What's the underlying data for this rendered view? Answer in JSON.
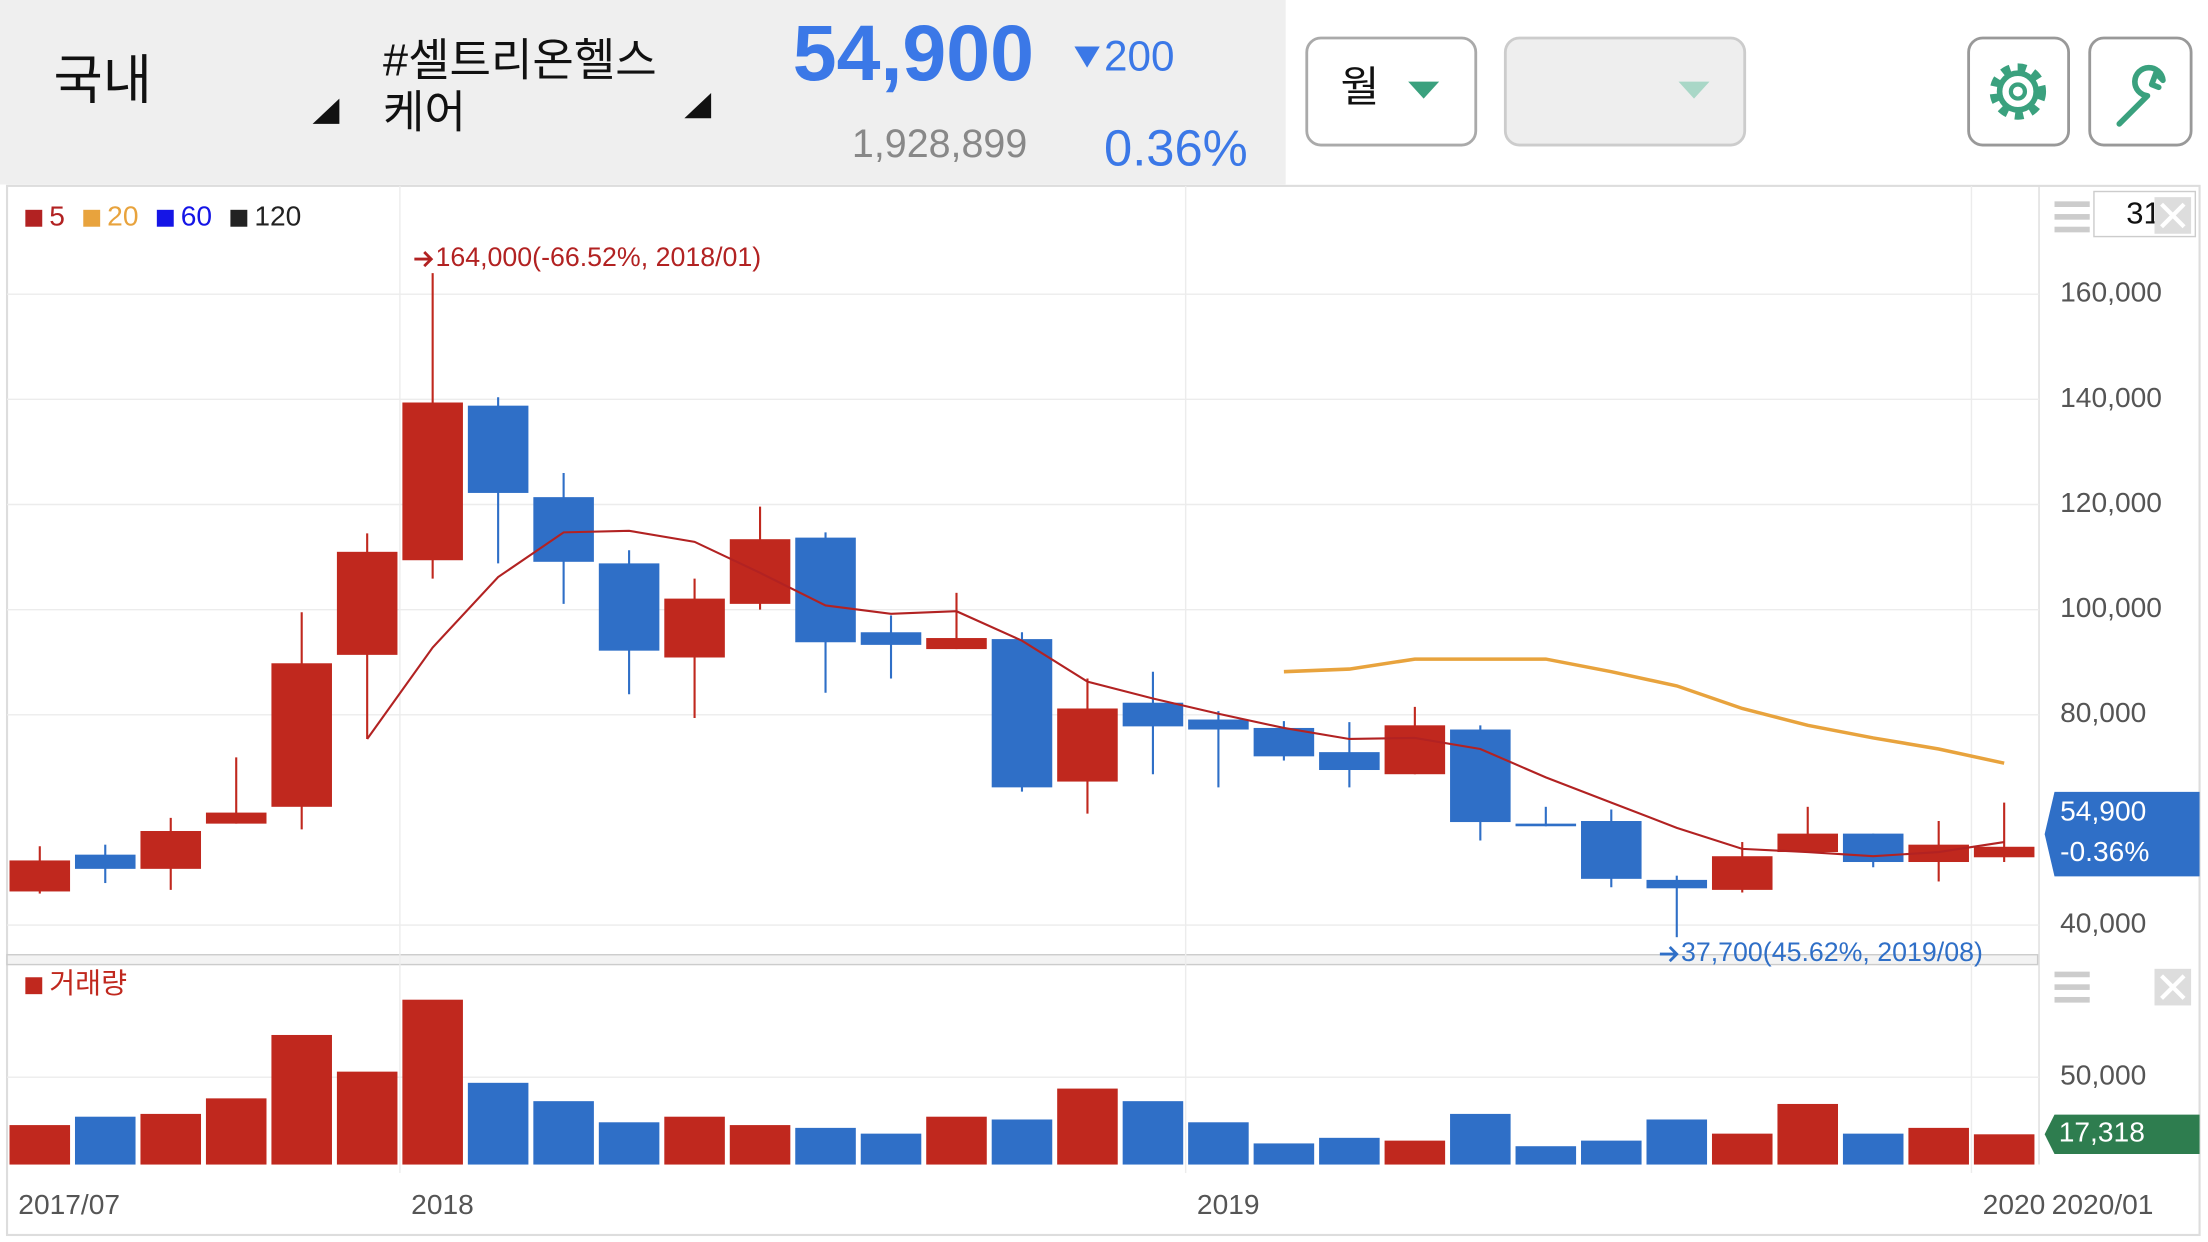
{
  "header": {
    "market": "국내",
    "stock_name": [
      "#셀트리온헬스",
      "케어"
    ],
    "price": "54,900",
    "change": "200",
    "volume": "1,928,899",
    "change_rate": "0.36%",
    "period": "월"
  },
  "chart_data": {
    "type": "candlestick",
    "categories": [
      "2017/07",
      null,
      null,
      null,
      null,
      null,
      "2018",
      null,
      null,
      null,
      null,
      null,
      null,
      null,
      null,
      null,
      null,
      null,
      "2019",
      null,
      null,
      null,
      null,
      null,
      null,
      null,
      null,
      null,
      null,
      null,
      "2020"
    ],
    "open": [
      46400,
      53400,
      50700,
      59300,
      62500,
      91400,
      109400,
      138800,
      121400,
      108800,
      90900,
      101100,
      113700,
      95700,
      92500,
      94400,
      67300,
      82300,
      79100,
      77500,
      72900,
      68700,
      77200,
      59300,
      59800,
      48600,
      46700,
      53900,
      57400,
      52000,
      52900
    ],
    "high": [
      55000,
      55300,
      60400,
      71900,
      99500,
      114500,
      164000,
      140400,
      126000,
      111300,
      105900,
      119600,
      114700,
      98900,
      103200,
      95700,
      86900,
      88200,
      80700,
      78800,
      78600,
      81500,
      78000,
      62500,
      62000,
      49400,
      55800,
      62500,
      57400,
      59800,
      63300
    ],
    "low": [
      46000,
      48000,
      46700,
      59300,
      58200,
      75400,
      105900,
      108800,
      101100,
      83900,
      79400,
      100000,
      84200,
      86900,
      92500,
      65400,
      61200,
      68700,
      66200,
      71300,
      66200,
      68700,
      56100,
      58800,
      47200,
      37700,
      46200,
      53900,
      51000,
      48300,
      52000
    ],
    "close": [
      52300,
      50700,
      57900,
      61400,
      89800,
      111000,
      139400,
      122200,
      109100,
      92200,
      102100,
      113400,
      93800,
      93300,
      94600,
      66200,
      81200,
      77800,
      77200,
      72100,
      69500,
      78000,
      59600,
      58800,
      48800,
      47000,
      53100,
      57400,
      52000,
      55300,
      54900
    ],
    "up_color": "#c0281e",
    "down_color": "#2f6fc7",
    "ylim": [
      34900,
      179800
    ],
    "yticks": [
      {
        "value": 40000,
        "label": "40,000"
      },
      {
        "value": 80000,
        "label": "80,000"
      },
      {
        "value": 100000,
        "label": "100,000"
      },
      {
        "value": 120000,
        "label": "120,000"
      },
      {
        "value": 140000,
        "label": "140,000"
      },
      {
        "value": 160000,
        "label": "160,000"
      }
    ],
    "grid": true,
    "series": [
      {
        "name": "5",
        "color": "#b22222",
        "values": [
          null,
          null,
          null,
          null,
          null,
          75400,
          92800,
          106200,
          114700,
          115000,
          112900,
          107000,
          100800,
          99200,
          99700,
          94100,
          86300,
          83100,
          80200,
          77500,
          75400,
          75600,
          73500,
          68100,
          63300,
          58500,
          54500,
          53900,
          53100,
          53900,
          55800
        ]
      },
      {
        "name": "20",
        "color": "#e8a33d",
        "values": [
          null,
          null,
          null,
          null,
          null,
          null,
          null,
          null,
          null,
          null,
          null,
          null,
          null,
          null,
          null,
          null,
          null,
          null,
          null,
          88200,
          88700,
          90600,
          90600,
          90600,
          88200,
          85500,
          81200,
          78000,
          75600,
          73500,
          70800
        ]
      },
      {
        "name": "60",
        "color": "#1515e6",
        "values": [
          null,
          null,
          null,
          null,
          null,
          null,
          null,
          null,
          null,
          null,
          null,
          null,
          null,
          null,
          null,
          null,
          null,
          null,
          null,
          null,
          null,
          null,
          null,
          null,
          null,
          null,
          null,
          null,
          null,
          null,
          null
        ]
      },
      {
        "name": "120",
        "color": "#222222",
        "values": [
          null,
          null,
          null,
          null,
          null,
          null,
          null,
          null,
          null,
          null,
          null,
          null,
          null,
          null,
          null,
          null,
          null,
          null,
          null,
          null,
          null,
          null,
          null,
          null,
          null,
          null,
          null,
          null,
          null,
          null,
          null
        ]
      }
    ],
    "annotations": {
      "high": "164,000(-66.52%, 2018/01)",
      "low": "37,700(45.62%, 2019/08)"
    },
    "last_label": {
      "price": "54,900",
      "change": "-0.36%",
      "color": "#2f6fc7"
    },
    "cursor_label": "2020/01",
    "counter": "31",
    "volume": {
      "title": "거래량",
      "values": [
        22600,
        27400,
        29000,
        37900,
        74200,
        53200,
        94400,
        46800,
        36300,
        24200,
        27400,
        22600,
        21000,
        17700,
        27400,
        25800,
        43500,
        36300,
        24200,
        12100,
        15300,
        13700,
        29000,
        10500,
        13700,
        25800,
        17700,
        34700,
        17700,
        21000,
        17318
      ],
      "ylim": [
        0,
        114500
      ],
      "yticks": [
        {
          "value": 50000,
          "label": "50,000"
        }
      ],
      "last_label": "17,318",
      "tag_color": "#2e7d4f"
    }
  }
}
